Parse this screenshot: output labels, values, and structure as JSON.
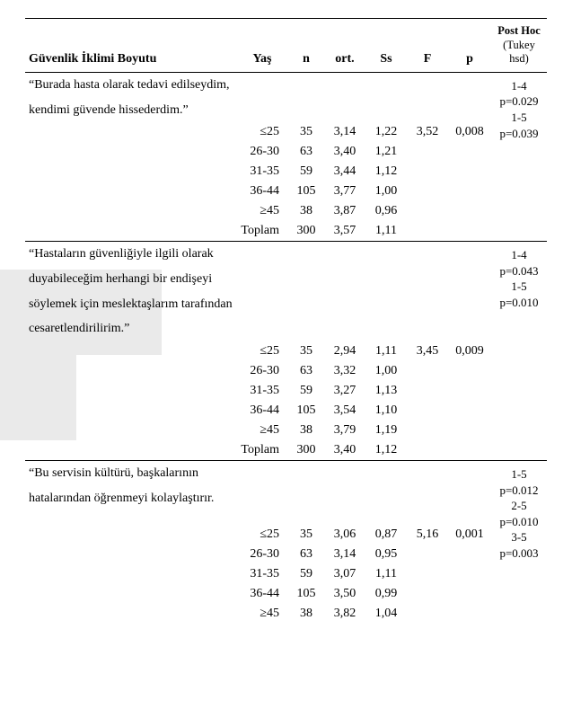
{
  "headers": {
    "dimension": "Güvenlik İklimi Boyutu",
    "age": "Yaş",
    "n": "n",
    "mean": "ort.",
    "sd": "Ss",
    "f": "F",
    "p": "p",
    "posthoc_top": "Post Hoc",
    "posthoc_sub": "(Tukey hsd)"
  },
  "sections": [
    {
      "title_lines": [
        "“Burada hasta olarak tedavi edilseydim,",
        "kendimi güvende hissederdim.”"
      ],
      "F": "3,52",
      "p": "0,008",
      "posthoc_lines": [
        "1-4",
        "p=0.029",
        "1-5",
        "p=0.039"
      ],
      "rows": [
        {
          "age": "≤25",
          "n": "35",
          "mean": "3,14",
          "sd": "1,22"
        },
        {
          "age": "26-30",
          "n": "63",
          "mean": "3,40",
          "sd": "1,21"
        },
        {
          "age": "31-35",
          "n": "59",
          "mean": "3,44",
          "sd": "1,12"
        },
        {
          "age": "36-44",
          "n": "105",
          "mean": "3,77",
          "sd": "1,00"
        },
        {
          "age": "≥45",
          "n": "38",
          "mean": "3,87",
          "sd": "0,96"
        },
        {
          "age": "Toplam",
          "n": "300",
          "mean": "3,57",
          "sd": "1,11"
        }
      ]
    },
    {
      "title_lines": [
        "“Hastaların güvenliğiyle ilgili olarak",
        "duyabileceğim herhangi bir endişeyi",
        "söylemek için meslektaşlarım tarafından",
        "cesaretlendirilirim.”"
      ],
      "F": "3,45",
      "p": "0,009",
      "posthoc_lines": [
        "1-4",
        "p=0.043",
        "1-5",
        "p=0.010"
      ],
      "rows": [
        {
          "age": "≤25",
          "n": "35",
          "mean": "2,94",
          "sd": "1,11"
        },
        {
          "age": "26-30",
          "n": "63",
          "mean": "3,32",
          "sd": "1,00"
        },
        {
          "age": "31-35",
          "n": "59",
          "mean": "3,27",
          "sd": "1,13"
        },
        {
          "age": "36-44",
          "n": "105",
          "mean": "3,54",
          "sd": "1,10"
        },
        {
          "age": "≥45",
          "n": "38",
          "mean": "3,79",
          "sd": "1,19"
        },
        {
          "age": "Toplam",
          "n": "300",
          "mean": "3,40",
          "sd": "1,12"
        }
      ]
    },
    {
      "title_lines": [
        "“Bu servisin kültürü, başkalarının",
        "hatalarından öğrenmeyi kolaylaştırır."
      ],
      "F": "5,16",
      "p": "0,001",
      "posthoc_lines": [
        "1-5",
        "p=0.012",
        "2-5",
        "p=0.010",
        "3-5",
        "p=0.003"
      ],
      "extra_title_gap": true,
      "rows": [
        {
          "age": "≤25",
          "n": "35",
          "mean": "3,06",
          "sd": "0,87"
        },
        {
          "age": "26-30",
          "n": "63",
          "mean": "3,14",
          "sd": "0,95"
        },
        {
          "age": "31-35",
          "n": "59",
          "mean": "3,07",
          "sd": "1,11"
        },
        {
          "age": "36-44",
          "n": "105",
          "mean": "3,50",
          "sd": "0,99"
        },
        {
          "age": "≥45",
          "n": "38",
          "mean": "3,82",
          "sd": "1,04"
        }
      ]
    }
  ],
  "colors": {
    "text": "#000000",
    "background": "#ffffff",
    "watermark": "#d8d8d8",
    "rule": "#000000"
  },
  "typography": {
    "base_font": "Times New Roman",
    "base_size_pt": 11,
    "header_weight": "bold"
  }
}
